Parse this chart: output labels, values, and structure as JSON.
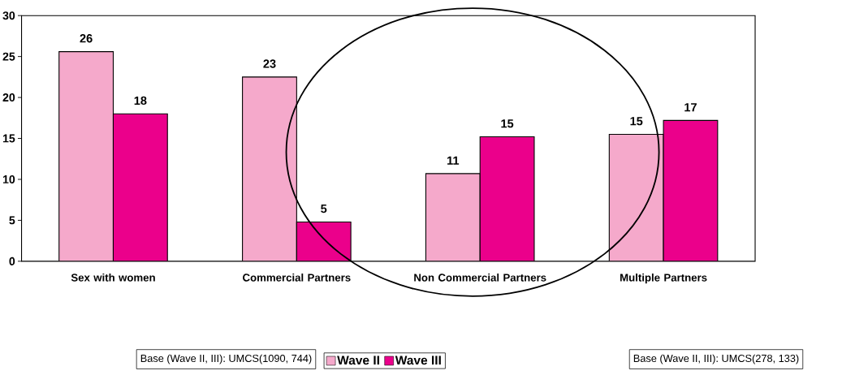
{
  "chart_data": {
    "type": "bar",
    "categories": [
      "Sex with women",
      "Commercial Partners",
      "Non Commercial Partners",
      "Multiple Partners"
    ],
    "series": [
      {
        "name": "Wave II",
        "color": "#f5a9cb",
        "values": [
          25.6,
          22.5,
          10.7,
          15.5
        ],
        "value_labels": [
          "26",
          "23",
          "11",
          "15"
        ]
      },
      {
        "name": "Wave III",
        "color": "#eb008b",
        "values": [
          18.0,
          4.8,
          15.2,
          17.2
        ],
        "value_labels": [
          "18",
          "5",
          "15",
          "17"
        ]
      }
    ],
    "ylim": [
      0,
      30
    ],
    "yticks": [
      0,
      5,
      10,
      15,
      20,
      25,
      30
    ],
    "grid": false,
    "legend": "bottom",
    "annotations": [
      "Base (Wave II, III): UMCS(1090, 744)",
      "Base (Wave II, III): UMCS(278, 133)"
    ]
  }
}
